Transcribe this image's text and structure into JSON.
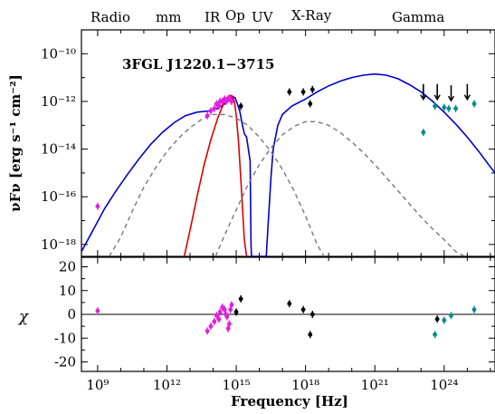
{
  "chart_data": [
    {
      "type": "line",
      "panel": "SED",
      "annotation": "3FGL J1220.1−3715",
      "band_labels": [
        "Radio",
        "mm",
        "IR",
        "Op",
        "UV",
        "X-Ray",
        "Gamma"
      ],
      "ylabel": "νFν [erg s⁻¹ cm⁻²]",
      "x_log10_range": [
        8.3,
        26.2
      ],
      "y_log10_range": [
        -18.5,
        -9.0
      ],
      "y_ticks": [
        {
          "exp": -10,
          "label": "10⁻¹⁰"
        },
        {
          "exp": -12,
          "label": "10⁻¹²"
        },
        {
          "exp": -14,
          "label": "10⁻¹⁴"
        },
        {
          "exp": -16,
          "label": "10⁻¹⁶"
        },
        {
          "exp": -18,
          "label": "10⁻¹⁸"
        }
      ],
      "x_scale": "log",
      "y_scale": "log",
      "series": [
        {
          "role": "total",
          "color": "#0000cc",
          "style": "solid",
          "x_log10": [
            8.3,
            8.8,
            9.3,
            9.8,
            10.3,
            10.8,
            11.3,
            11.8,
            12.3,
            12.8,
            13.3,
            13.8,
            14.2,
            14.5,
            14.7,
            14.85,
            14.95,
            15.05,
            15.15,
            15.25,
            15.35,
            15.45,
            15.6,
            15.64,
            15.66,
            15.7,
            15.8,
            16.0,
            16.3,
            16.5,
            16.6,
            16.8,
            17.0,
            17.4,
            18.0,
            18.5,
            19.0,
            19.5,
            20.0,
            20.5,
            21.0,
            21.5,
            22.0,
            22.5,
            23.0,
            23.5,
            24.0,
            24.5,
            25.0,
            25.5,
            26.0,
            26.2
          ],
          "y_log10": [
            -18.3,
            -17.4,
            -16.5,
            -15.75,
            -15.05,
            -14.4,
            -13.8,
            -13.3,
            -12.9,
            -12.6,
            -12.45,
            -12.4,
            -12.3,
            -12.1,
            -11.9,
            -11.8,
            -11.85,
            -12.1,
            -12.4,
            -12.9,
            -13.35,
            -13.5,
            -14.5,
            -18.0,
            -18.5,
            -18.5,
            -18.5,
            -18.5,
            -18.5,
            -15.2,
            -14.0,
            -13.0,
            -12.55,
            -12.2,
            -11.9,
            -11.6,
            -11.35,
            -11.15,
            -11.0,
            -10.9,
            -10.85,
            -10.9,
            -11.05,
            -11.3,
            -11.6,
            -12.0,
            -12.45,
            -12.95,
            -13.5,
            -14.1,
            -14.75,
            -15.0
          ]
        },
        {
          "role": "synchrotron (red)",
          "color": "#dd0000",
          "style": "solid",
          "x_log10": [
            12.75,
            13.0,
            13.3,
            13.6,
            13.9,
            14.2,
            14.45,
            14.65,
            14.8,
            14.92,
            15.0,
            15.1,
            15.2,
            15.35,
            15.45
          ],
          "y_log10": [
            -18.5,
            -17.4,
            -16.0,
            -14.7,
            -13.6,
            -12.7,
            -12.1,
            -11.8,
            -11.75,
            -12.0,
            -12.6,
            -13.7,
            -15.3,
            -17.8,
            -18.5
          ]
        },
        {
          "role": "component 1 (dashed)",
          "color": "#777777",
          "style": "dashed",
          "x_log10": [
            9.5,
            10.0,
            10.5,
            11.0,
            11.5,
            12.0,
            12.5,
            13.0,
            13.5,
            14.0,
            14.5,
            15.0,
            15.5,
            16.0,
            16.5,
            17.0,
            17.5,
            18.0,
            18.5,
            18.8
          ],
          "y_log10": [
            -18.5,
            -17.7,
            -16.6,
            -15.6,
            -14.8,
            -14.1,
            -13.55,
            -13.1,
            -12.75,
            -12.55,
            -12.55,
            -12.7,
            -13.0,
            -13.5,
            -14.1,
            -14.85,
            -15.75,
            -16.8,
            -18.0,
            -18.5
          ]
        },
        {
          "role": "component 2 (dashed)",
          "color": "#777777",
          "style": "dashed",
          "x_log10": [
            14.1,
            14.5,
            15.0,
            15.5,
            16.0,
            16.5,
            17.0,
            17.5,
            18.0,
            18.5,
            19.0,
            19.5,
            20.0,
            20.5,
            21.0,
            21.5,
            22.0,
            22.5,
            23.0,
            23.5,
            24.0,
            24.5,
            24.9
          ],
          "y_log10": [
            -18.5,
            -17.6,
            -16.55,
            -15.5,
            -14.65,
            -13.95,
            -13.4,
            -13.05,
            -12.85,
            -12.85,
            -13.0,
            -13.3,
            -13.7,
            -14.15,
            -14.65,
            -15.2,
            -15.75,
            -16.3,
            -16.85,
            -17.35,
            -17.8,
            -18.3,
            -18.5
          ]
        }
      ],
      "points": [
        {
          "name": "radio",
          "color": "#e020e0",
          "x_log10": [
            9.0
          ],
          "y_log10": [
            -16.4
          ]
        },
        {
          "name": "IR/optical",
          "color": "#e020e0",
          "x_log10": [
            13.75,
            13.9,
            14.05,
            14.15,
            14.25,
            14.3,
            14.4,
            14.5,
            14.55,
            14.6,
            14.65,
            14.7,
            14.75,
            14.8
          ],
          "y_log10": [
            -12.6,
            -12.4,
            -12.3,
            -12.1,
            -12.2,
            -12.0,
            -12.0,
            -11.9,
            -12.0,
            -11.95,
            -11.9,
            -11.85,
            -11.9,
            -12.0
          ]
        },
        {
          "name": "UV",
          "color": "#000000",
          "x_log10": [
            15.2
          ],
          "y_log10": [
            -12.2
          ]
        },
        {
          "name": "X-ray",
          "color": "#000000",
          "x_log10": [
            17.3,
            17.9,
            18.2,
            18.3
          ],
          "y_log10": [
            -11.6,
            -11.6,
            -12.1,
            -11.5
          ]
        },
        {
          "name": "Fermi",
          "color": "#008b8b",
          "x_log10": [
            23.1,
            23.6,
            24.0,
            24.2,
            24.5,
            25.3
          ],
          "y_log10": [
            -13.3,
            -12.2,
            -12.25,
            -12.3,
            -12.3,
            -12.1
          ]
        },
        {
          "name": "upper limits",
          "color": "#000000",
          "x_log10": [
            23.1,
            23.7,
            24.3,
            25.0
          ],
          "y_log10": [
            -11.5,
            -11.5,
            -11.55,
            -11.5
          ],
          "upper_limit": true
        }
      ]
    },
    {
      "type": "scatter",
      "panel": "residuals",
      "ylabel": "χ",
      "xlabel": "Frequency [Hz]",
      "ylim": [
        -24,
        24
      ],
      "y_ticks": [
        20,
        10,
        0,
        -10,
        -20
      ],
      "x_ticks": [
        {
          "exp": 9,
          "label": "10⁹"
        },
        {
          "exp": 12,
          "label": "10¹²"
        },
        {
          "exp": 15,
          "label": "10¹⁵"
        },
        {
          "exp": 18,
          "label": "10¹⁸"
        },
        {
          "exp": 21,
          "label": "10²¹"
        },
        {
          "exp": 24,
          "label": "10²⁴"
        }
      ],
      "series": [
        {
          "name": "radio",
          "color": "#e020e0",
          "x_log10": [
            9.0
          ],
          "y": [
            1.5
          ]
        },
        {
          "name": "IR/optical",
          "color": "#e020e0",
          "x_log10": [
            13.75,
            13.9,
            14.05,
            14.15,
            14.25,
            14.3,
            14.4,
            14.5,
            14.55,
            14.6,
            14.65,
            14.7,
            14.75,
            14.8
          ],
          "y": [
            -7,
            -5,
            -3,
            -0.5,
            -2,
            1,
            3,
            2,
            0,
            -1,
            -6,
            -4,
            2,
            4
          ]
        },
        {
          "name": "optical/UV",
          "color": "#000000",
          "x_log10": [
            15.0,
            15.2
          ],
          "y": [
            1,
            6.5
          ]
        },
        {
          "name": "X-ray",
          "color": "#000000",
          "x_log10": [
            17.3,
            17.9,
            18.2,
            18.3
          ],
          "y": [
            4.5,
            2,
            -8.5,
            0
          ]
        },
        {
          "name": "gamma",
          "color": "#000000",
          "x_log10": [
            23.7
          ],
          "y": [
            -2
          ]
        },
        {
          "name": "Fermi",
          "color": "#008b8b",
          "x_log10": [
            23.6,
            24.0,
            24.3,
            25.3
          ],
          "y": [
            -8.5,
            -2.5,
            -0.5,
            2
          ]
        }
      ]
    }
  ]
}
